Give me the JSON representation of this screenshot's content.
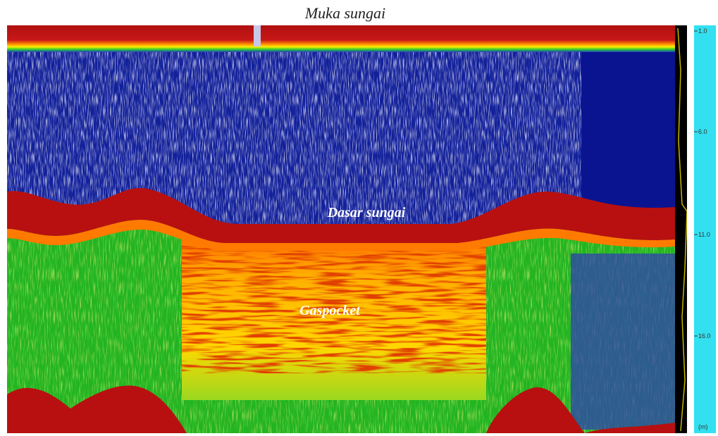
{
  "title": "Muka sungai",
  "labels": {
    "river_bed": "Dasar sungai",
    "gas_pocket": "Gaspocket"
  },
  "depth_scale": {
    "ticks": [
      "1.0",
      "6.0",
      "11.0",
      "16.0"
    ],
    "unit": "(m)"
  }
}
